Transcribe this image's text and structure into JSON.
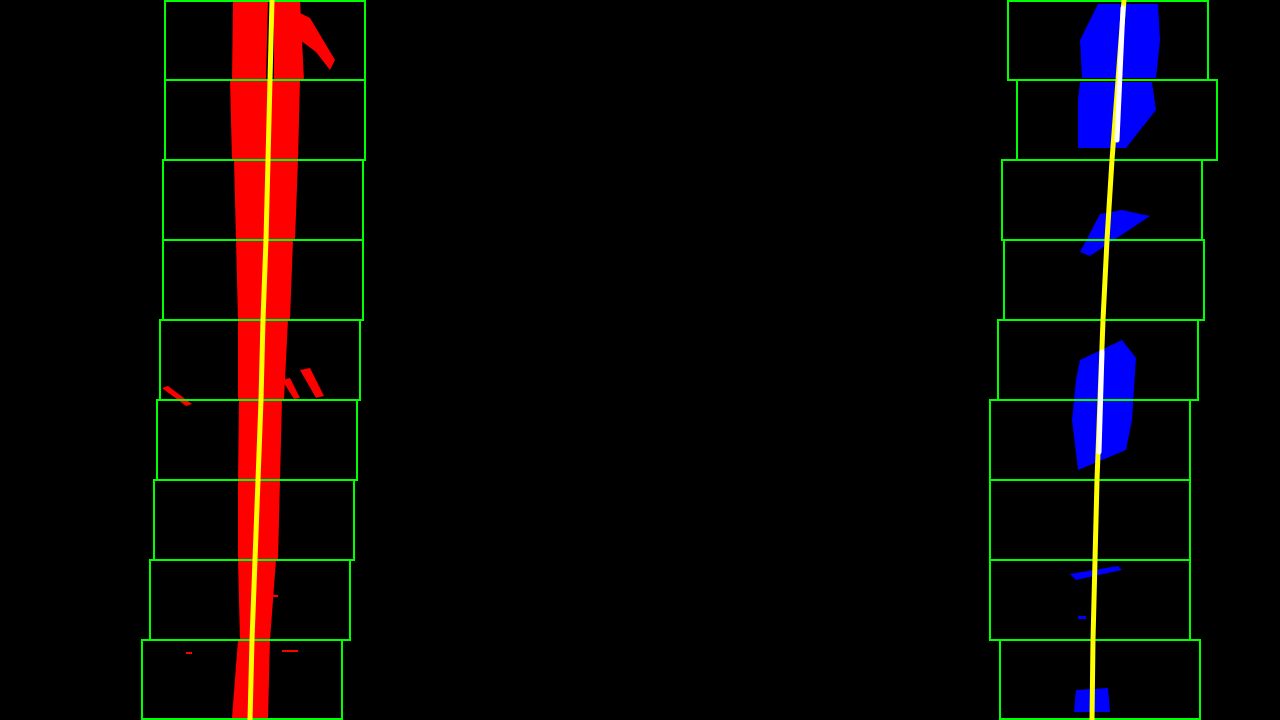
{
  "colors": {
    "background": "#000000",
    "left_lane_pixels": "#ff0000",
    "right_lane_pixels": "#0000ff",
    "search_window": "#00ff00",
    "fitted_curve": "#ffff00"
  },
  "lanes": [
    {
      "id": "left",
      "pixel_color_key": "left_lane_pixels",
      "window_count": 9
    },
    {
      "id": "right",
      "pixel_color_key": "right_lane_pixels",
      "window_count": 9
    }
  ],
  "icons": {
    "window": "rectangle-outline",
    "fit": "polyline"
  }
}
